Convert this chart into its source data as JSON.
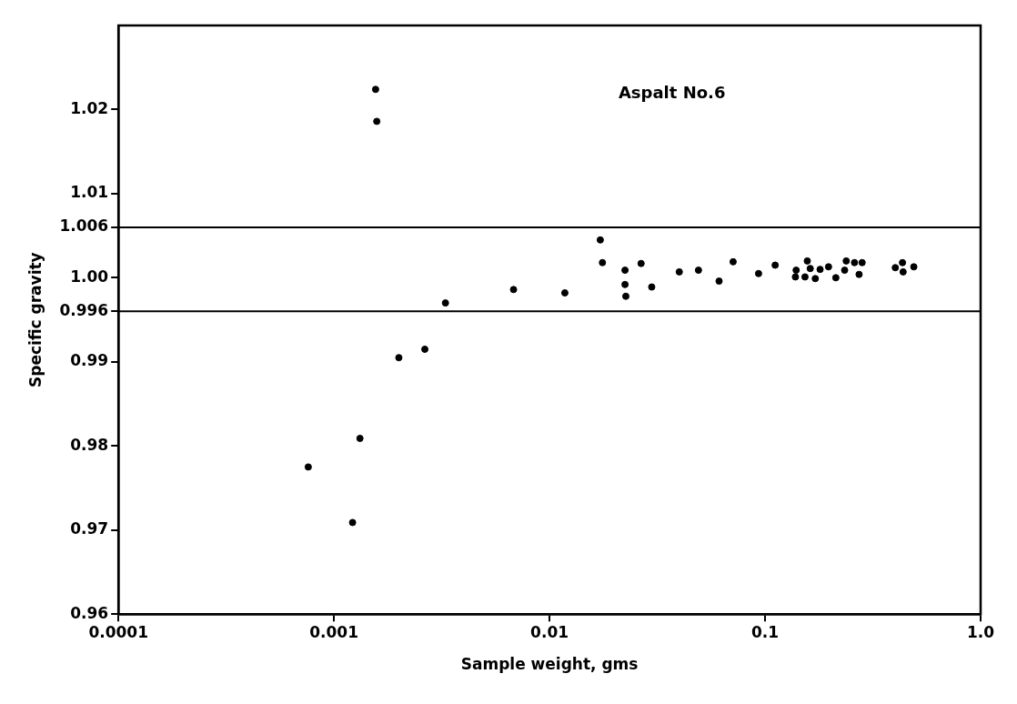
{
  "chart_data": {
    "type": "scatter",
    "xlabel": "Sample weight, gms",
    "ylabel": "Specific gravity",
    "annotations": [
      "Aspalt No.6"
    ],
    "log": "x",
    "grid": false,
    "legend": false,
    "marker": "circle",
    "xlim": [
      0.0001,
      1
    ],
    "xticks": [
      0.0001,
      0.001,
      0.01,
      0.1,
      {
        "value": 1,
        "label": "1.0"
      }
    ],
    "ylim": [
      0.96,
      1.03
    ],
    "yticks": [
      0.96,
      0.97,
      0.98,
      0.99,
      0.996,
      {
        "value": 1,
        "label": "1.00"
      },
      1.006,
      1.01,
      1.02
    ],
    "ref_lines": [
      {
        "axis": "y",
        "value": 1.006,
        "color": "#000000"
      },
      {
        "axis": "y",
        "value": 0.996,
        "color": "#000000"
      }
    ],
    "series": [
      {
        "color": "#000000",
        "x": [
          0.00156,
          0.00158,
          0.00329,
          0.002,
          0.00264,
          0.00076,
          0.00132,
          0.00122,
          0.00681,
          0.01178,
          0.0172,
          0.0176,
          0.0224,
          0.0224,
          0.0226,
          0.0266,
          0.0298,
          0.04,
          0.0491,
          0.0612,
          0.0711,
          0.0933,
          0.1114,
          0.1394,
          0.1383,
          0.1532,
          0.157,
          0.162,
          0.171,
          0.18,
          0.197,
          0.213,
          0.234,
          0.238,
          0.26,
          0.273,
          0.282,
          0.402,
          0.434,
          0.437,
          0.49
        ],
        "values": [
          1.0224,
          1.0186,
          0.997,
          0.9905,
          0.9915,
          0.9775,
          0.9809,
          0.9709,
          0.9986,
          0.9982,
          1.0045,
          1.0018,
          1.0009,
          0.9992,
          0.9978,
          1.0017,
          0.9989,
          1.0007,
          1.0009,
          0.9996,
          1.0019,
          1.0005,
          1.0015,
          1.0009,
          1.0001,
          1.0001,
          1.002,
          1.0011,
          0.9999,
          1.001,
          1.0013,
          1.0,
          1.0009,
          1.002,
          1.0018,
          1.0004,
          1.0018,
          1.0012,
          1.0018,
          1.0007,
          1.0013
        ]
      }
    ]
  }
}
